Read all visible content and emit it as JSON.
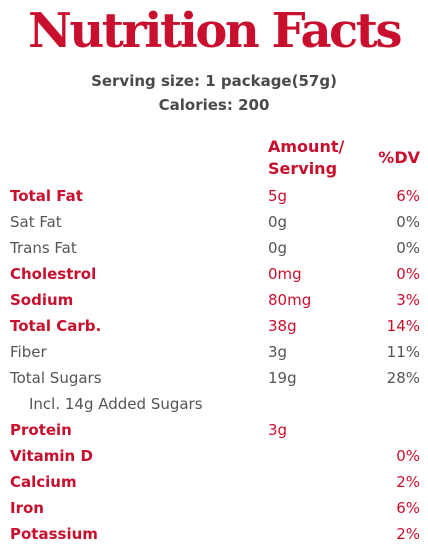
{
  "title": "Nutrition Facts",
  "serving_size": "Serving size: 1 package(57g)",
  "calories": "Calories: 200",
  "headers": {
    "amount": "Amount/ Serving",
    "dv": "%DV"
  },
  "rows": [
    {
      "name": "Total Fat",
      "amount": "5g",
      "dv": "6%"
    },
    {
      "name": "Sat Fat",
      "amount": "0g",
      "dv": "0%"
    },
    {
      "name": "Trans Fat",
      "amount": "0g",
      "dv": "0%"
    },
    {
      "name": "Cholestrol",
      "amount": "0mg",
      "dv": "0%"
    },
    {
      "name": "Sodium",
      "amount": "80mg",
      "dv": "3%"
    },
    {
      "name": "Total Carb.",
      "amount": "38g",
      "dv": "14%"
    },
    {
      "name": "Fiber",
      "amount": "3g",
      "dv": "11%"
    },
    {
      "name": "Total Sugars",
      "amount": "19g",
      "dv": "28%"
    },
    {
      "name": "Incl. 14g Added Sugars",
      "amount": "",
      "dv": ""
    },
    {
      "name": "Protein",
      "amount": "3g",
      "dv": ""
    },
    {
      "name": "Vitamin D",
      "amount": "",
      "dv": "0%"
    },
    {
      "name": "Calcium",
      "amount": "",
      "dv": "2%"
    },
    {
      "name": "Iron",
      "amount": "",
      "dv": "6%"
    },
    {
      "name": "Potassium",
      "amount": "",
      "dv": "2%"
    }
  ],
  "colors": {
    "accent": "#c8102e",
    "text_gray": "#555555"
  }
}
